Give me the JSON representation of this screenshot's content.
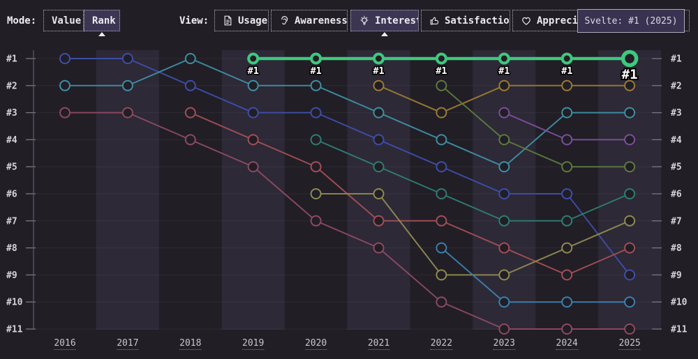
{
  "header": {
    "mode_label": "Mode:",
    "mode_options": [
      {
        "label": "Value",
        "selected": false
      },
      {
        "label": "Rank",
        "selected": true
      }
    ],
    "view_label": "View:",
    "view_options": [
      {
        "label": "Usage",
        "icon": "document-icon",
        "selected": false
      },
      {
        "label": "Awareness",
        "icon": "ear-icon",
        "selected": false
      },
      {
        "label": "Interest",
        "icon": "lightbulb-icon",
        "selected": true
      },
      {
        "label": "Satisfaction",
        "icon": "thumbs-up-icon",
        "selected": false
      },
      {
        "label": "Appreciation",
        "icon": "heart-icon",
        "selected": false
      }
    ],
    "tooltip_text": "Svelte: #1 (2025)"
  },
  "chart_data": {
    "type": "line",
    "subtype": "bump-chart-rankings",
    "x": [
      2016,
      2017,
      2018,
      2019,
      2020,
      2021,
      2022,
      2023,
      2024,
      2025
    ],
    "rank_labels": [
      "#1",
      "#2",
      "#3",
      "#4",
      "#5",
      "#6",
      "#7",
      "#8",
      "#9",
      "#10",
      "#11"
    ],
    "ylim": [
      1,
      11
    ],
    "grid": true,
    "series": [
      {
        "name": "indigo",
        "color": "#3e4ea8",
        "ranks": [
          1,
          1,
          2,
          3,
          3,
          4,
          5,
          6,
          6,
          9
        ]
      },
      {
        "name": "teal",
        "color": "#3e8fa3",
        "ranks": [
          2,
          2,
          1,
          2,
          2,
          3,
          4,
          5,
          3,
          3
        ]
      },
      {
        "name": "maroon",
        "color": "#8d4a60",
        "ranks": [
          3,
          3,
          4,
          5,
          7,
          8,
          10,
          11,
          11,
          11
        ]
      },
      {
        "name": "crimson",
        "color": "#a34e55",
        "ranks": [
          null,
          null,
          3,
          4,
          5,
          7,
          7,
          8,
          9,
          8
        ]
      },
      {
        "name": "dark-teal",
        "color": "#2f7d72",
        "ranks": [
          null,
          null,
          null,
          null,
          4,
          5,
          6,
          7,
          7,
          6
        ]
      },
      {
        "name": "olive",
        "color": "#8f8a50",
        "ranks": [
          null,
          null,
          null,
          null,
          6,
          6,
          9,
          9,
          8,
          7
        ]
      },
      {
        "name": "amber",
        "color": "#9a7b33",
        "ranks": [
          null,
          null,
          null,
          null,
          null,
          2,
          3,
          2,
          2,
          2
        ]
      },
      {
        "name": "dark-green",
        "color": "#5d7a3e",
        "ranks": [
          null,
          null,
          null,
          null,
          null,
          null,
          2,
          4,
          5,
          5
        ]
      },
      {
        "name": "steel-blue",
        "color": "#3d7fae",
        "ranks": [
          null,
          null,
          null,
          null,
          null,
          null,
          8,
          10,
          10,
          10
        ]
      },
      {
        "name": "violet",
        "color": "#7b4f9b",
        "ranks": [
          null,
          null,
          null,
          null,
          null,
          null,
          null,
          3,
          4,
          4
        ]
      },
      {
        "name": "Svelte",
        "color": "#3ec97e",
        "ranks": [
          null,
          null,
          null,
          1,
          1,
          1,
          1,
          1,
          1,
          1
        ],
        "highlight": true
      }
    ],
    "highlight": {
      "series": "Svelte",
      "color": "#3ec97e",
      "point_label": "#1",
      "tooltip": "Svelte: #1 (2025)"
    }
  },
  "colors": {
    "background": "#211e26",
    "band": "#2d2937",
    "selected_button_bg": "#3c3653",
    "tooltip_bg": "#393351",
    "axis": "#615e6a",
    "tick": "#7a7784",
    "grid_line": "rgba(255,255,255,0.055)",
    "rank_label": "#d6d3dd",
    "year_label": "#c9c6d1",
    "point_fill": "#211e26",
    "highlight_green": "#3ec97e"
  }
}
